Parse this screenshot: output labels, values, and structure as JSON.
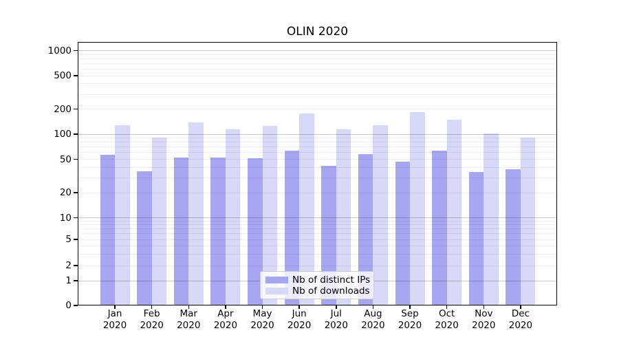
{
  "figure": {
    "title": "OLIN 2020"
  },
  "chart_data": {
    "type": "bar",
    "title": "OLIN 2020",
    "x_categories": [
      "Jan 2020",
      "Feb 2020",
      "Mar 2020",
      "Apr 2020",
      "May 2020",
      "Jun 2020",
      "Jul 2020",
      "Aug 2020",
      "Sep 2020",
      "Oct 2020",
      "Nov 2020",
      "Dec 2020"
    ],
    "series": [
      {
        "name": "Nb of distinct IPs",
        "color": "#a6a6f2",
        "values": [
          57,
          36,
          52,
          52,
          51,
          64,
          42,
          58,
          47,
          63,
          35,
          38
        ]
      },
      {
        "name": "Nb of downloads",
        "color": "#d8d8f8",
        "values": [
          128,
          91,
          138,
          114,
          125,
          178,
          114,
          128,
          183,
          150,
          102,
          91
        ]
      }
    ],
    "y_scale": "symlog",
    "y_ticks": [
      0,
      1,
      2,
      5,
      10,
      20,
      50,
      100,
      200,
      500,
      1000
    ],
    "y_tick_labels": [
      "0",
      "1",
      "2",
      "5",
      "10",
      "20",
      "50",
      "100",
      "200",
      "500",
      "1000"
    ],
    "ylim": [
      0,
      1270
    ],
    "grid": true,
    "legend_position": "lower-center-inside"
  }
}
